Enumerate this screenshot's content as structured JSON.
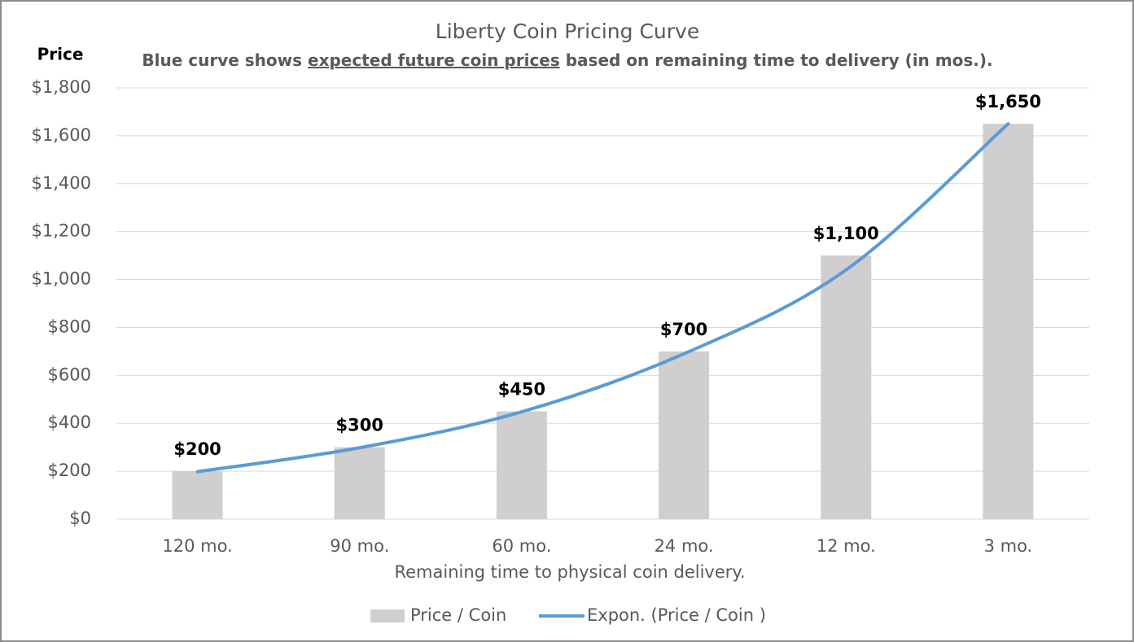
{
  "chart_data": {
    "type": "bar",
    "title": "Liberty Coin Pricing Curve",
    "subtitle": [
      "Blue curve shows ",
      "expected future coin prices",
      " based on remaining time to delivery (in mos.)."
    ],
    "y_label": "Price",
    "x_label": "Remaining time to physical coin delivery.",
    "categories": [
      "120 mo.",
      "90 mo.",
      "60 mo.",
      "24 mo.",
      "12 mo.",
      "3 mo."
    ],
    "series": [
      {
        "name": "Price / Coin",
        "type": "bar",
        "color": "#d0cece",
        "values": [
          200,
          300,
          450,
          700,
          1100,
          1650
        ],
        "value_labels": [
          "$200",
          "$300",
          "$450",
          "$700",
          "$1,100",
          "$1,650"
        ]
      },
      {
        "name": "Expon. (Price / Coin )",
        "type": "line",
        "color": "#5b9bd5",
        "values": [
          198,
          298,
          448,
          690,
          1040,
          1650
        ]
      }
    ],
    "ylim": [
      0,
      1800
    ],
    "yticks": [
      {
        "value": 0,
        "label": "$0"
      },
      {
        "value": 200,
        "label": "$200"
      },
      {
        "value": 400,
        "label": "$400"
      },
      {
        "value": 600,
        "label": "$600"
      },
      {
        "value": 800,
        "label": "$800"
      },
      {
        "value": 1000,
        "label": "$1,000"
      },
      {
        "value": 1200,
        "label": "$1,200"
      },
      {
        "value": 1400,
        "label": "$1,400"
      },
      {
        "value": 1600,
        "label": "$1,600"
      },
      {
        "value": 1800,
        "label": "$1,800"
      }
    ],
    "grid": true
  }
}
